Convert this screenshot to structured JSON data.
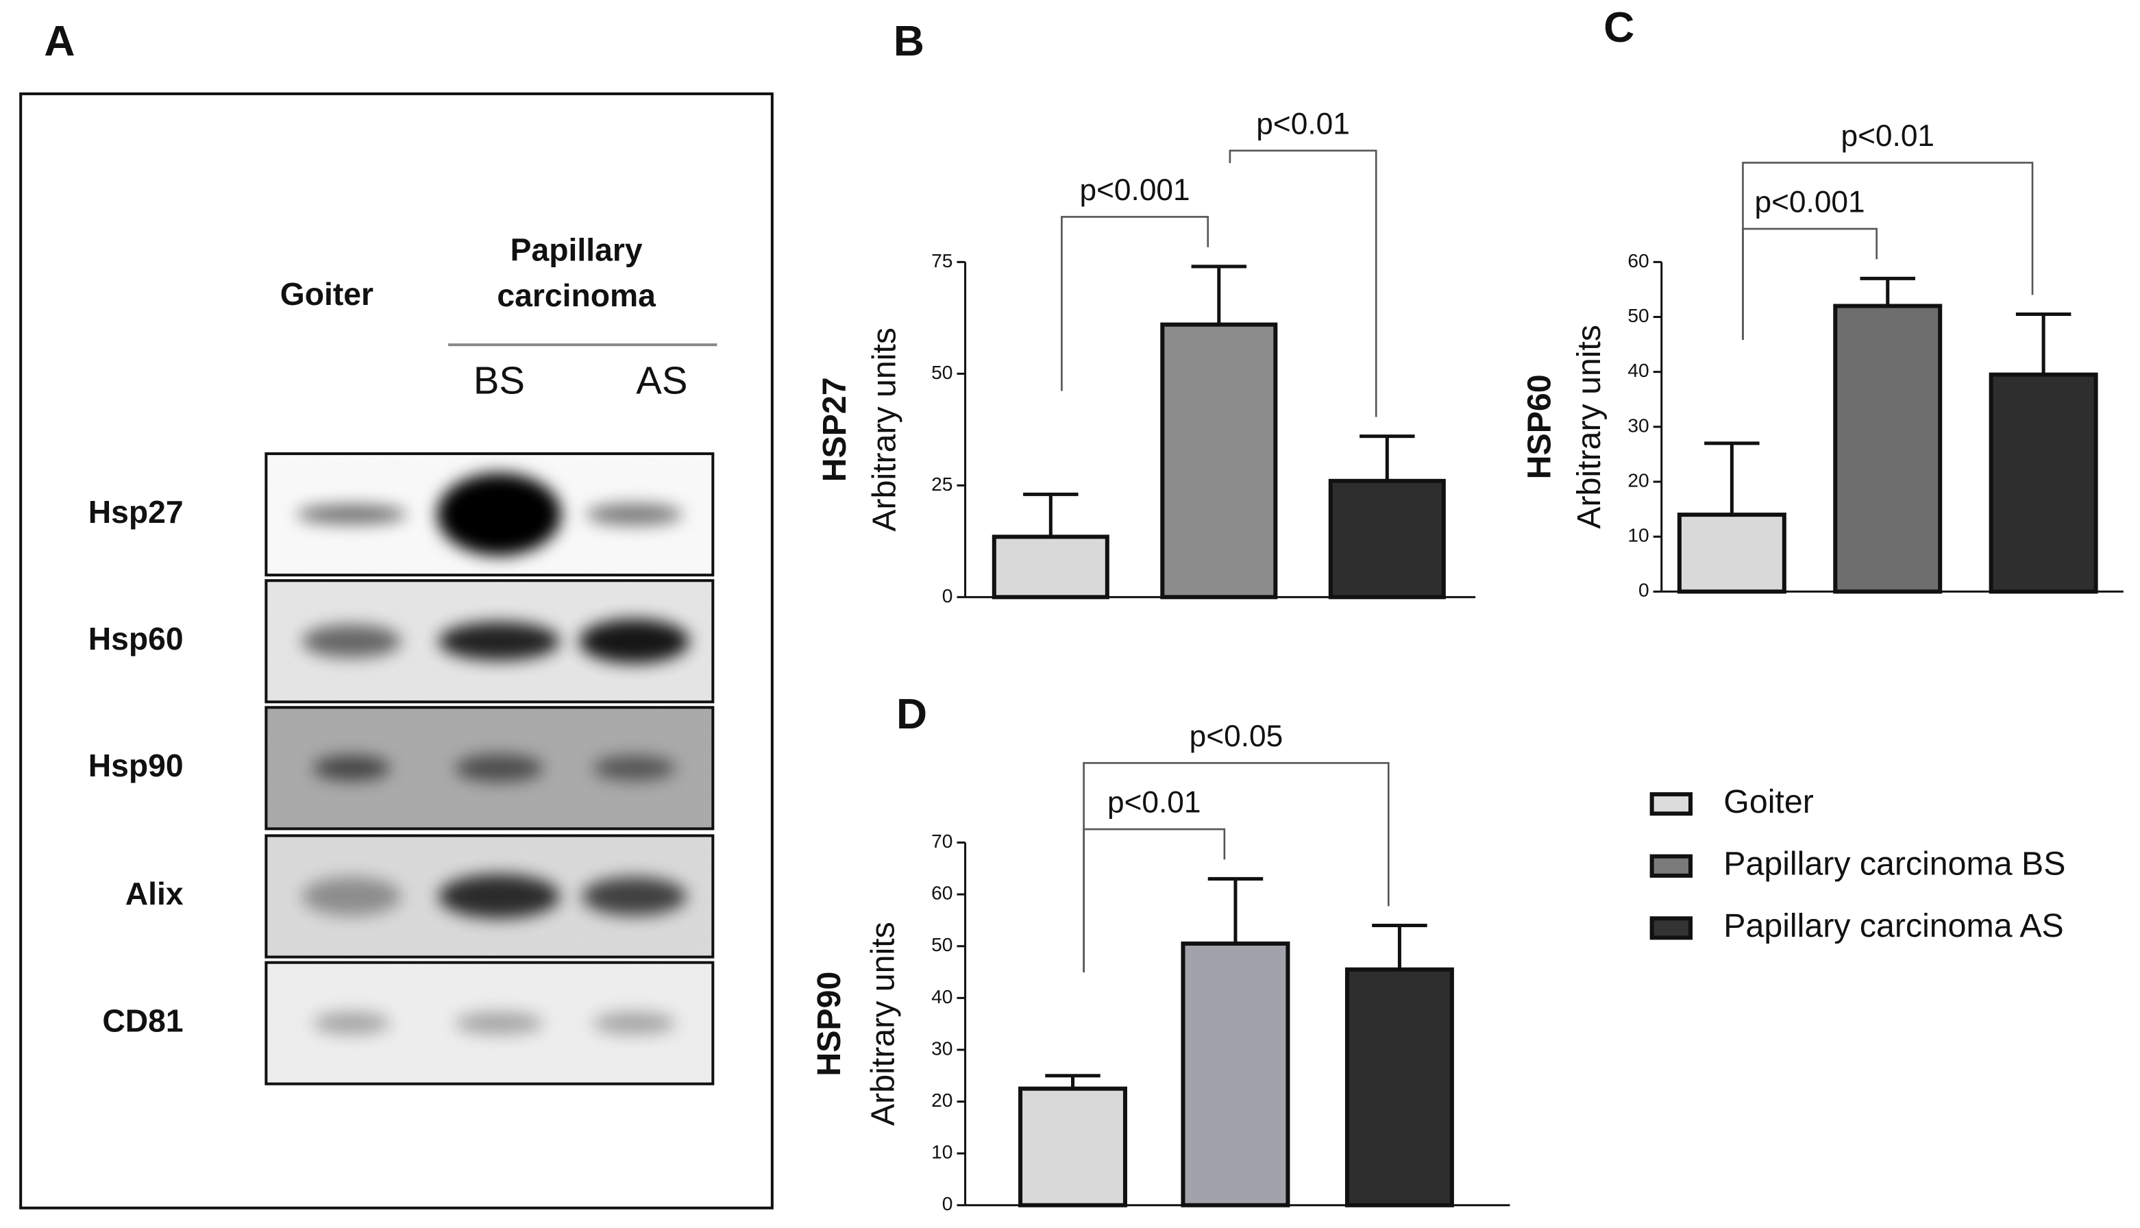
{
  "blot": {
    "panel": "A",
    "columns": {
      "goiter": "Goiter",
      "carcinoma": [
        "Papillary",
        "carcinoma"
      ],
      "subgroups": [
        "BS",
        "AS"
      ]
    },
    "rows": [
      "Hsp27",
      "Hsp60",
      "Hsp90",
      "Alix",
      "CD81"
    ]
  },
  "legend": {
    "entries": [
      {
        "name": "Goiter",
        "color": "#dcdcdc"
      },
      {
        "name": "Papillary carcinoma BS",
        "color": "#7a7a7a"
      },
      {
        "name": "Papillary carcinoma AS",
        "color": "#333333"
      }
    ]
  },
  "chart_data": [
    {
      "type": "bar",
      "panel": "B",
      "title": "HSP27",
      "ylabel": "Arbitrary units",
      "values": [
        13.5,
        61,
        26
      ],
      "errors": [
        9.5,
        13,
        10
      ],
      "colors": [
        "#d9d9d9",
        "#8c8c8c",
        "#2e2e2e"
      ],
      "ylim": [
        0,
        75
      ],
      "yticks": [
        0,
        25,
        50,
        75
      ],
      "comparisons": [
        {
          "between": [
            0,
            1
          ],
          "label": "p<0.001"
        },
        {
          "between": [
            1,
            2
          ],
          "label": "p<0.01"
        }
      ]
    },
    {
      "type": "bar",
      "panel": "C",
      "title": "HSP60",
      "ylabel": "Arbitrary units",
      "values": [
        14,
        52,
        39.5
      ],
      "errors": [
        13,
        5,
        11
      ],
      "colors": [
        "#d9d9d9",
        "#6e6e6e",
        "#2e2e2e"
      ],
      "ylim": [
        0,
        60
      ],
      "yticks": [
        0,
        10,
        20,
        30,
        40,
        50,
        60
      ],
      "comparisons": [
        {
          "between": [
            0,
            1
          ],
          "label": "p<0.001"
        },
        {
          "between": [
            0,
            2
          ],
          "label": "p<0.01"
        }
      ]
    },
    {
      "type": "bar",
      "panel": "D",
      "title": "HSP90",
      "ylabel": "Arbitrary units",
      "values": [
        22.5,
        50.5,
        45.5
      ],
      "errors": [
        2.5,
        12.5,
        8.5
      ],
      "colors": [
        "#d9d9d9",
        "#a2a2aa",
        "#2e2e2e"
      ],
      "ylim": [
        0,
        70
      ],
      "yticks": [
        0,
        10,
        20,
        30,
        40,
        50,
        60,
        70
      ],
      "comparisons": [
        {
          "between": [
            0,
            1
          ],
          "label": "p<0.01"
        },
        {
          "between": [
            0,
            2
          ],
          "label": "p<0.05"
        }
      ]
    }
  ]
}
